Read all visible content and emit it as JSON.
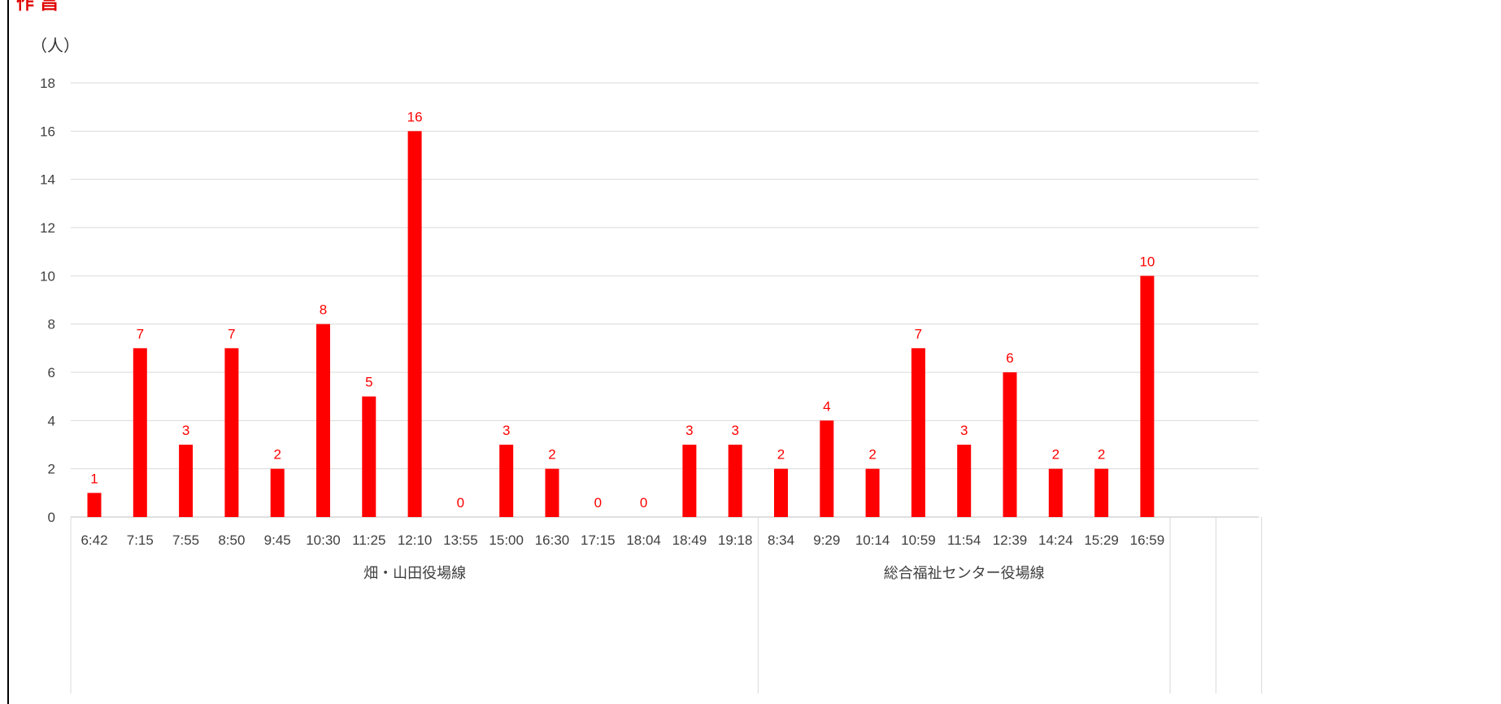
{
  "chart_data": {
    "type": "bar",
    "title": "作 昌",
    "ylabel": "（人）",
    "ylim": [
      0,
      18
    ],
    "yticks": [
      0,
      2,
      4,
      6,
      8,
      10,
      12,
      14,
      16,
      18
    ],
    "grid": true,
    "bar_color": "#ff0000",
    "label_color": "#ff0000",
    "groups": [
      {
        "name": "畑・山田役場線",
        "categories": [
          "6:42",
          "7:15",
          "7:55",
          "8:50",
          "9:45",
          "10:30",
          "11:25",
          "12:10",
          "13:55",
          "15:00",
          "16:30",
          "17:15",
          "18:04",
          "18:49",
          "19:18"
        ]
      },
      {
        "name": "総合福祉センター役場線",
        "categories": [
          "8:34",
          "9:29",
          "10:14",
          "10:59",
          "11:54",
          "12:39",
          "14:24",
          "15:29",
          "16:59"
        ]
      }
    ],
    "categories": [
      "6:42",
      "7:15",
      "7:55",
      "8:50",
      "9:45",
      "10:30",
      "11:25",
      "12:10",
      "13:55",
      "15:00",
      "16:30",
      "17:15",
      "18:04",
      "18:49",
      "19:18",
      "8:34",
      "9:29",
      "10:14",
      "10:59",
      "11:54",
      "12:39",
      "14:24",
      "15:29",
      "16:59",
      "",
      ""
    ],
    "values": [
      1,
      7,
      3,
      7,
      2,
      8,
      5,
      16,
      0,
      3,
      2,
      0,
      0,
      3,
      3,
      2,
      4,
      2,
      7,
      3,
      6,
      2,
      2,
      10,
      null,
      null
    ]
  }
}
